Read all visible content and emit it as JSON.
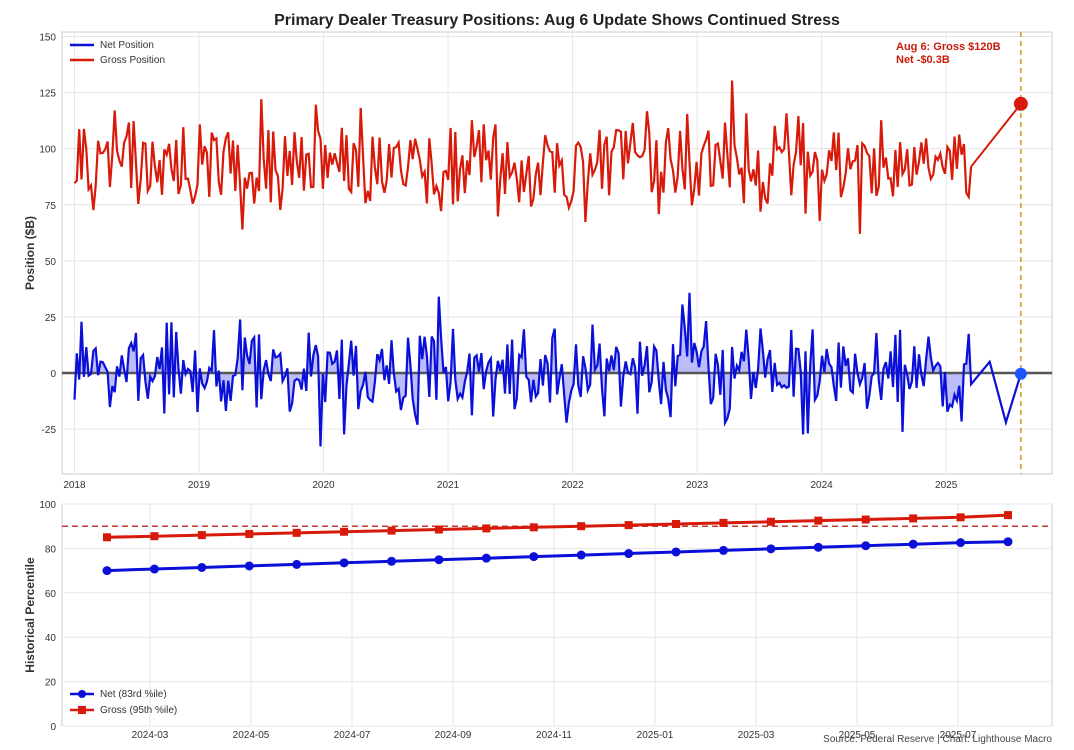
{
  "title": "Primary Dealer Treasury Positions: Aug 6 Update Shows Continued Stress",
  "source_note": "Source: Federal Reserve | Chart: Lighthouse Macro",
  "colors": {
    "net": "#0a10d8",
    "gross": "#d81a0a",
    "net_fill": "#8f8ff5",
    "zero_line": "#555555",
    "marker_line": "#c89a1c",
    "threshold": "#c0392b"
  },
  "chart_data": [
    {
      "type": "line",
      "title": "Primary Dealer Treasury Positions: Aug 6 Update Shows Continued Stress",
      "ylabel": "Position ($B)",
      "xlabel": "",
      "xlim": [
        2017.9,
        2025.85
      ],
      "ylim": [
        -45,
        152
      ],
      "x_ticks": [
        "2018",
        "2019",
        "2020",
        "2021",
        "2022",
        "2023",
        "2024",
        "2025"
      ],
      "y_ticks": [
        "150",
        "125",
        "100",
        "75",
        "50",
        "25",
        "0",
        "-25"
      ],
      "y_tick_values": [
        150,
        125,
        100,
        75,
        50,
        25,
        0,
        -25
      ],
      "legend": "top-left",
      "grid": true,
      "series": [
        {
          "name": "Net Position",
          "color": "#0a10d8",
          "seed": 7,
          "base": 0,
          "noise": 16,
          "min": -40,
          "max": 46,
          "fill_to_zero": true
        },
        {
          "name": "Gross Position",
          "color": "#d81a0a",
          "seed": 13,
          "base": 93,
          "noise": 16,
          "min": 62,
          "max": 145
        }
      ],
      "latest_marker": {
        "date": "2025-08-06",
        "x": 2025.6,
        "gross": 120,
        "net": -0.3
      },
      "annotation": {
        "line1": "Aug 6: Gross $120B",
        "line2": "Net -$0.3B"
      }
    },
    {
      "type": "line",
      "title": "",
      "ylabel": "Historical Percentile",
      "xlabel": "",
      "ylim": [
        0,
        100
      ],
      "y_ticks": [
        "100",
        "80",
        "60",
        "40",
        "20",
        "0"
      ],
      "y_tick_values": [
        100,
        80,
        60,
        40,
        20,
        0
      ],
      "x_ticks": [
        "2024-03",
        "2024-05",
        "2024-07",
        "2024-09",
        "2024-11",
        "2025-01",
        "2025-03",
        "2025-05",
        "2025-07"
      ],
      "threshold": 90,
      "legend": "bottom-left",
      "grid": true,
      "series": [
        {
          "name": "Net (83rd %ile)",
          "color": "#0a10d8",
          "values": [
            70.0,
            70.7,
            71.4,
            72.1,
            72.8,
            73.5,
            74.2,
            74.9,
            75.6,
            76.3,
            77.0,
            77.7,
            78.4,
            79.1,
            79.8,
            80.5,
            81.2,
            81.9,
            82.6,
            83.0
          ]
        },
        {
          "name": "Gross (95th %ile)",
          "color": "#d81a0a",
          "values": [
            85.0,
            85.5,
            86.0,
            86.5,
            87.0,
            87.5,
            88.0,
            88.5,
            89.0,
            89.5,
            90.0,
            90.5,
            91.0,
            91.5,
            92.0,
            92.5,
            93.0,
            93.5,
            94.0,
            95.0
          ]
        }
      ]
    }
  ]
}
